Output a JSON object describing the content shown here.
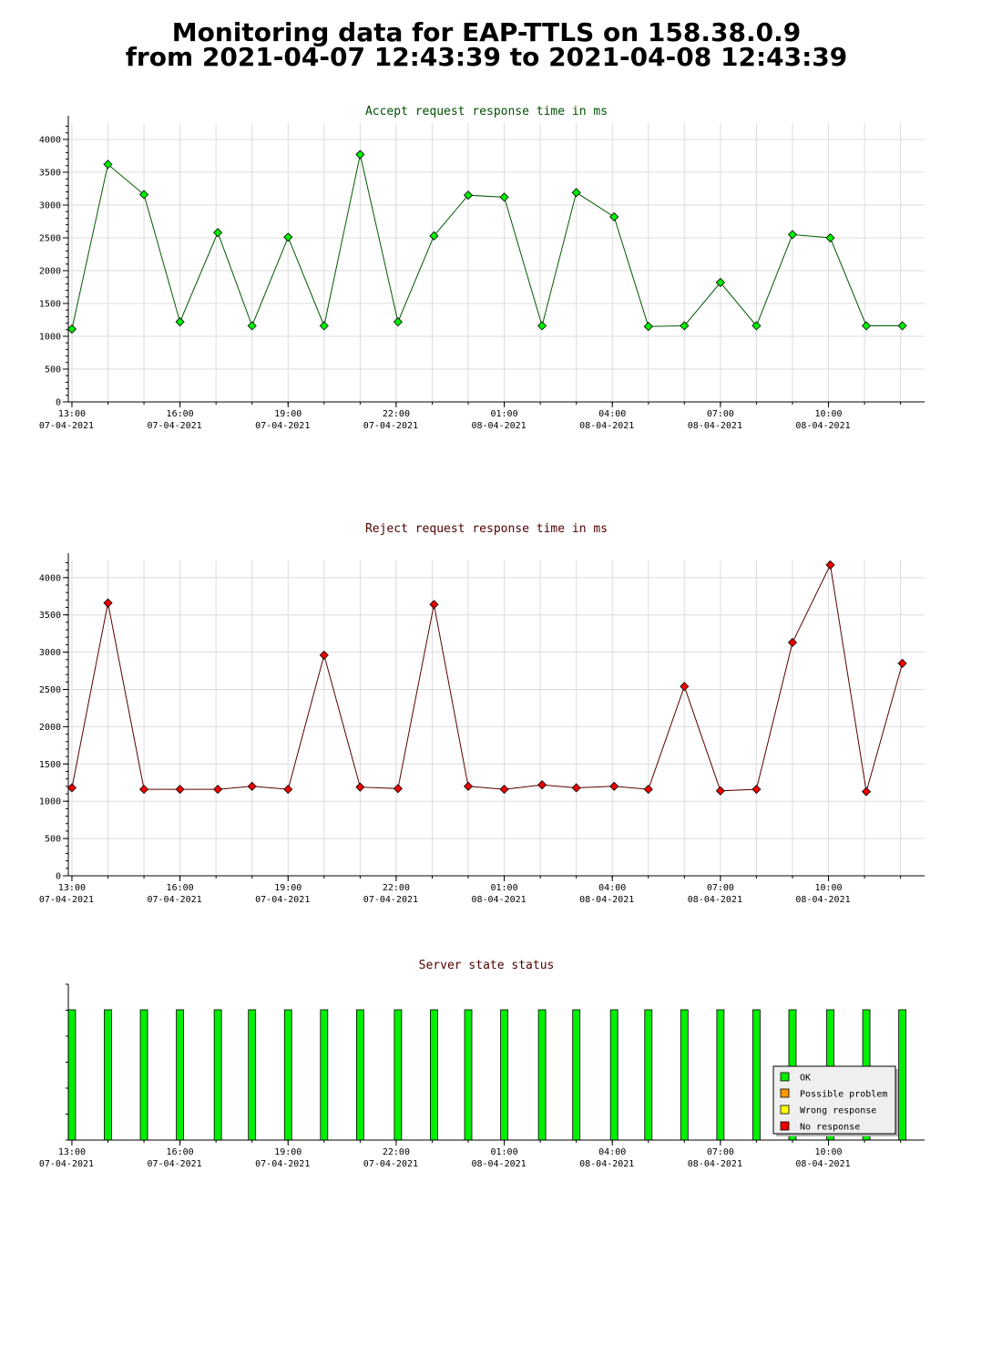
{
  "page": {
    "title_line1": "Monitoring data for EAP-TTLS on 158.38.0.9",
    "title_line2": "from 2021-04-07 12:43:39 to 2021-04-08 12:43:39"
  },
  "colors": {
    "accept_title": "#005000",
    "reject_title": "#500000",
    "status_title": "#500000",
    "accept_marker": "#00ee00",
    "accept_line": "#005a00",
    "reject_marker": "#ee0000",
    "reject_line": "#5a0000",
    "ok": "#00ee00",
    "possible_problem": "#ff9900",
    "wrong_response": "#ffff00",
    "no_response": "#ee0000",
    "grid": "#dcdcdc"
  },
  "chart_data": [
    {
      "type": "line",
      "title": "Accept request response time in ms",
      "x_ticks": [
        {
          "time": "13:00",
          "date": "07-04-2021"
        },
        {
          "time": "16:00",
          "date": "07-04-2021"
        },
        {
          "time": "19:00",
          "date": "07-04-2021"
        },
        {
          "time": "22:00",
          "date": "07-04-2021"
        },
        {
          "time": "01:00",
          "date": "08-04-2021"
        },
        {
          "time": "04:00",
          "date": "08-04-2021"
        },
        {
          "time": "07:00",
          "date": "08-04-2021"
        },
        {
          "time": "10:00",
          "date": "08-04-2021"
        }
      ],
      "y_ticks": [
        0,
        500,
        1000,
        1500,
        2000,
        2500,
        3000,
        3500,
        4000
      ],
      "ylim": [
        0,
        4250
      ],
      "xlim": [
        "2021-04-07 12:54",
        "2021-04-08 12:40"
      ],
      "grid": true,
      "points": [
        {
          "x": "2021-04-07 13:00",
          "y": 1110
        },
        {
          "x": "2021-04-07 14:00",
          "y": 3620
        },
        {
          "x": "2021-04-07 15:00",
          "y": 3160
        },
        {
          "x": "2021-04-07 16:00",
          "y": 1220
        },
        {
          "x": "2021-04-07 17:03",
          "y": 2580
        },
        {
          "x": "2021-04-07 18:00",
          "y": 1160
        },
        {
          "x": "2021-04-07 19:00",
          "y": 2510
        },
        {
          "x": "2021-04-07 20:00",
          "y": 1160
        },
        {
          "x": "2021-04-07 21:00",
          "y": 3770
        },
        {
          "x": "2021-04-07 22:03",
          "y": 1220
        },
        {
          "x": "2021-04-07 23:03",
          "y": 2530
        },
        {
          "x": "2021-04-08 00:00",
          "y": 3150
        },
        {
          "x": "2021-04-08 01:00",
          "y": 3120
        },
        {
          "x": "2021-04-08 02:03",
          "y": 1160
        },
        {
          "x": "2021-04-08 03:00",
          "y": 3190
        },
        {
          "x": "2021-04-08 04:03",
          "y": 2820
        },
        {
          "x": "2021-04-08 05:00",
          "y": 1150
        },
        {
          "x": "2021-04-08 06:00",
          "y": 1160
        },
        {
          "x": "2021-04-08 07:00",
          "y": 1820
        },
        {
          "x": "2021-04-08 08:00",
          "y": 1160
        },
        {
          "x": "2021-04-08 09:00",
          "y": 2550
        },
        {
          "x": "2021-04-08 10:03",
          "y": 2500
        },
        {
          "x": "2021-04-08 11:03",
          "y": 1160
        },
        {
          "x": "2021-04-08 12:03",
          "y": 1160
        }
      ]
    },
    {
      "type": "line",
      "title": "Reject request response time in ms",
      "x_ticks": [
        {
          "time": "13:00",
          "date": "07-04-2021"
        },
        {
          "time": "16:00",
          "date": "07-04-2021"
        },
        {
          "time": "19:00",
          "date": "07-04-2021"
        },
        {
          "time": "22:00",
          "date": "07-04-2021"
        },
        {
          "time": "01:00",
          "date": "08-04-2021"
        },
        {
          "time": "04:00",
          "date": "08-04-2021"
        },
        {
          "time": "07:00",
          "date": "08-04-2021"
        },
        {
          "time": "10:00",
          "date": "08-04-2021"
        }
      ],
      "y_ticks": [
        0,
        500,
        1000,
        1500,
        2000,
        2500,
        3000,
        3500,
        4000
      ],
      "ylim": [
        0,
        4230
      ],
      "xlim": [
        "2021-04-07 12:54",
        "2021-04-08 12:40"
      ],
      "grid": true,
      "points": [
        {
          "x": "2021-04-07 13:00",
          "y": 1180
        },
        {
          "x": "2021-04-07 14:00",
          "y": 3660
        },
        {
          "x": "2021-04-07 15:00",
          "y": 1160
        },
        {
          "x": "2021-04-07 16:00",
          "y": 1160
        },
        {
          "x": "2021-04-07 17:03",
          "y": 1160
        },
        {
          "x": "2021-04-07 18:00",
          "y": 1200
        },
        {
          "x": "2021-04-07 19:00",
          "y": 1160
        },
        {
          "x": "2021-04-07 20:00",
          "y": 2960
        },
        {
          "x": "2021-04-07 21:00",
          "y": 1190
        },
        {
          "x": "2021-04-07 22:03",
          "y": 1170
        },
        {
          "x": "2021-04-07 23:03",
          "y": 3640
        },
        {
          "x": "2021-04-08 00:00",
          "y": 1200
        },
        {
          "x": "2021-04-08 01:00",
          "y": 1160
        },
        {
          "x": "2021-04-08 02:03",
          "y": 1220
        },
        {
          "x": "2021-04-08 03:00",
          "y": 1180
        },
        {
          "x": "2021-04-08 04:03",
          "y": 1200
        },
        {
          "x": "2021-04-08 05:00",
          "y": 1160
        },
        {
          "x": "2021-04-08 06:00",
          "y": 2540
        },
        {
          "x": "2021-04-08 07:00",
          "y": 1140
        },
        {
          "x": "2021-04-08 08:00",
          "y": 1160
        },
        {
          "x": "2021-04-08 09:00",
          "y": 3130
        },
        {
          "x": "2021-04-08 10:03",
          "y": 4170
        },
        {
          "x": "2021-04-08 11:03",
          "y": 1130
        },
        {
          "x": "2021-04-08 12:03",
          "y": 2850
        }
      ]
    },
    {
      "type": "bar",
      "title": "Server state status",
      "x_ticks": [
        {
          "time": "13:00",
          "date": "07-04-2021"
        },
        {
          "time": "16:00",
          "date": "07-04-2021"
        },
        {
          "time": "19:00",
          "date": "07-04-2021"
        },
        {
          "time": "22:00",
          "date": "07-04-2021"
        },
        {
          "time": "01:00",
          "date": "08-04-2021"
        },
        {
          "time": "04:00",
          "date": "08-04-2021"
        },
        {
          "time": "07:00",
          "date": "08-04-2021"
        },
        {
          "time": "10:00",
          "date": "08-04-2021"
        }
      ],
      "xlim": [
        "2021-04-07 12:54",
        "2021-04-08 12:40"
      ],
      "grid": false,
      "legend": {
        "position": "bottom-right",
        "entries": [
          {
            "label": "OK",
            "color": "#00ee00"
          },
          {
            "label": "Possible problem",
            "color": "#ff9900"
          },
          {
            "label": "Wrong response",
            "color": "#ffff00"
          },
          {
            "label": "No response",
            "color": "#ee0000"
          }
        ]
      },
      "states": [
        {
          "x": "2021-04-07 13:00",
          "state": "OK"
        },
        {
          "x": "2021-04-07 14:00",
          "state": "OK"
        },
        {
          "x": "2021-04-07 15:00",
          "state": "OK"
        },
        {
          "x": "2021-04-07 16:00",
          "state": "OK"
        },
        {
          "x": "2021-04-07 17:03",
          "state": "OK"
        },
        {
          "x": "2021-04-07 18:00",
          "state": "OK"
        },
        {
          "x": "2021-04-07 19:00",
          "state": "OK"
        },
        {
          "x": "2021-04-07 20:00",
          "state": "OK"
        },
        {
          "x": "2021-04-07 21:00",
          "state": "OK"
        },
        {
          "x": "2021-04-07 22:03",
          "state": "OK"
        },
        {
          "x": "2021-04-07 23:03",
          "state": "OK"
        },
        {
          "x": "2021-04-08 00:00",
          "state": "OK"
        },
        {
          "x": "2021-04-08 01:00",
          "state": "OK"
        },
        {
          "x": "2021-04-08 02:03",
          "state": "OK"
        },
        {
          "x": "2021-04-08 03:00",
          "state": "OK"
        },
        {
          "x": "2021-04-08 04:03",
          "state": "OK"
        },
        {
          "x": "2021-04-08 05:00",
          "state": "OK"
        },
        {
          "x": "2021-04-08 06:00",
          "state": "OK"
        },
        {
          "x": "2021-04-08 07:00",
          "state": "OK"
        },
        {
          "x": "2021-04-08 08:00",
          "state": "OK"
        },
        {
          "x": "2021-04-08 09:00",
          "state": "OK"
        },
        {
          "x": "2021-04-08 10:03",
          "state": "OK"
        },
        {
          "x": "2021-04-08 11:03",
          "state": "OK"
        },
        {
          "x": "2021-04-08 12:03",
          "state": "OK"
        }
      ]
    }
  ]
}
